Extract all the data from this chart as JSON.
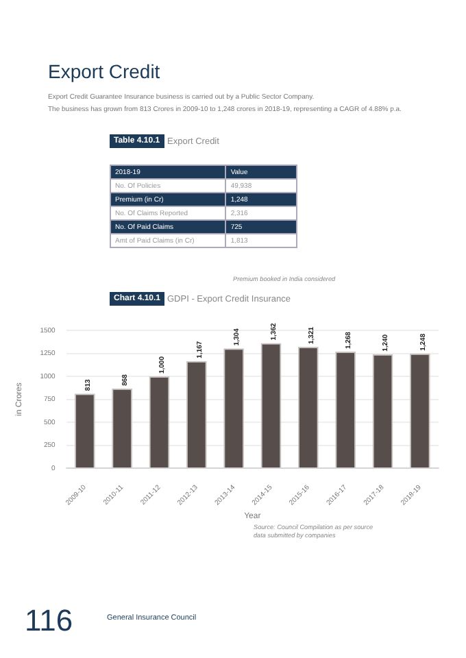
{
  "chart_data": {
    "type": "bar",
    "title": "GDPI - Export Credit Insurance",
    "xlabel": "Year",
    "ylabel": "in Crores",
    "categories": [
      "2009-10",
      "2010-11",
      "2011-12",
      "2012-13",
      "2013-14",
      "2014-15",
      "2015-16",
      "2016-17",
      "2017-18",
      "2018-19"
    ],
    "values": [
      813,
      868,
      1000,
      1167,
      1304,
      1362,
      1321,
      1268,
      1240,
      1248
    ],
    "value_labels": [
      "813",
      "868",
      "1,000",
      "1,167",
      "1,304",
      "1,362",
      "1,321",
      "1,268",
      "1,240",
      "1,248"
    ],
    "color": "#574d4b",
    "ylim": [
      0,
      1500
    ],
    "yticks": [
      0,
      250,
      500,
      750,
      1000,
      1250,
      1500
    ],
    "grid": "y",
    "legend": false,
    "annotations": [
      "Export Credit",
      "Export Credit Guarantee Insurance business is carried out by a Public Sector Company.",
      "The business has grown from 813 Crores in 2009-10 to 1,248 crores in 2018-19, representing a CAGR of 4.88% p.a.",
      "Table 4.10.1",
      "Export Credit",
      "2018-19",
      "Value",
      "No. Of Policies",
      "49,938",
      "Premium (in Cr)",
      "1,248",
      "No. Of Claims Reported",
      "2,316",
      "No. Of Paid Claims",
      "725",
      "Amt of Paid Claims (in Cr)",
      "1,813",
      "Premium booked in India considered",
      "Chart 4.10.1",
      "Source: Council Compilation as per source data submitted by companies",
      "116",
      "General Insurance Council"
    ]
  }
}
